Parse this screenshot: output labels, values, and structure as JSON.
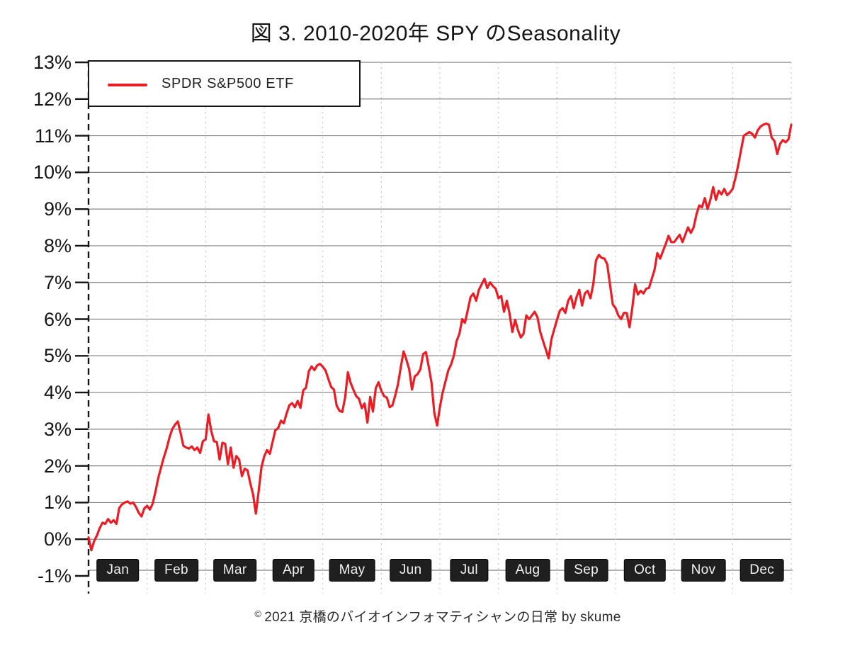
{
  "title": "図 3. 2010-2020年 SPY のSeasonality",
  "legend": {
    "label": "SPDR S&P500 ETF"
  },
  "footer": {
    "copyright": "©",
    "text": "2021 京橋のバイオインフォマティシャンの日常 by skume"
  },
  "colors": {
    "line": "#ed1c24",
    "grid": "#858585",
    "month_grid": "#cccccc",
    "axis": "#141414",
    "month_strip_line": "#9a9a9a",
    "month_box_bg": "#1f1f1f",
    "month_box_text": "#f2f2f2"
  },
  "chart_data": {
    "type": "line",
    "title": "図 3. 2010-2020年 SPY のSeasonality",
    "xlabel": "",
    "ylabel": "",
    "x_categories": [
      "Jan",
      "Feb",
      "Mar",
      "Apr",
      "May",
      "Jun",
      "Jul",
      "Aug",
      "Sep",
      "Oct",
      "Nov",
      "Dec"
    ],
    "ylim": [
      -1,
      13
    ],
    "ytick_step": 1,
    "ytick_format": "percent",
    "grid": true,
    "legend_position": "top-left",
    "series": [
      {
        "name": "SPDR S&P500 ETF",
        "color": "#ed1c24",
        "points_per_month": 21,
        "unit": "%",
        "values": [
          0.05,
          -0.3,
          -0.05,
          0.1,
          0.3,
          0.45,
          0.42,
          0.55,
          0.45,
          0.52,
          0.42,
          0.85,
          0.95,
          1.0,
          1.03,
          0.97,
          1.0,
          0.88,
          0.72,
          0.62,
          0.84,
          0.91,
          0.81,
          0.97,
          1.3,
          1.67,
          1.95,
          2.23,
          2.47,
          2.77,
          3.0,
          3.12,
          3.21,
          2.9,
          2.55,
          2.5,
          2.47,
          2.53,
          2.43,
          2.5,
          2.35,
          2.67,
          2.72,
          3.4,
          2.95,
          2.67,
          2.65,
          2.17,
          2.63,
          2.6,
          2.05,
          2.5,
          1.95,
          2.27,
          2.17,
          1.72,
          1.92,
          1.88,
          1.53,
          1.22,
          0.7,
          1.3,
          1.96,
          2.26,
          2.43,
          2.33,
          2.65,
          2.97,
          3.03,
          3.23,
          3.16,
          3.42,
          3.65,
          3.71,
          3.6,
          3.77,
          3.58,
          4.06,
          4.13,
          4.58,
          4.71,
          4.61,
          4.74,
          4.78,
          4.7,
          4.6,
          4.37,
          4.15,
          4.08,
          3.64,
          3.5,
          3.47,
          3.86,
          4.55,
          4.26,
          4.07,
          3.9,
          3.83,
          3.57,
          3.7,
          3.18,
          3.88,
          3.48,
          4.12,
          4.28,
          4.05,
          3.9,
          3.86,
          3.6,
          3.65,
          3.92,
          4.24,
          4.7,
          5.12,
          4.89,
          4.63,
          4.08,
          4.44,
          4.5,
          4.63,
          5.05,
          5.1,
          4.7,
          4.27,
          3.45,
          3.1,
          3.6,
          4.0,
          4.3,
          4.6,
          4.76,
          5.0,
          5.4,
          5.6,
          6.0,
          5.9,
          6.25,
          6.6,
          6.7,
          6.5,
          6.8,
          6.95,
          7.1,
          6.85,
          7.0,
          6.9,
          6.83,
          6.57,
          6.63,
          6.2,
          6.5,
          6.15,
          5.65,
          5.98,
          5.7,
          5.5,
          5.6,
          6.1,
          6.0,
          6.1,
          6.2,
          6.05,
          5.65,
          5.4,
          5.17,
          4.93,
          5.45,
          5.72,
          5.98,
          6.23,
          6.3,
          6.17,
          6.5,
          6.63,
          6.3,
          6.6,
          6.8,
          6.37,
          6.7,
          6.77,
          6.57,
          6.95,
          7.6,
          7.75,
          7.67,
          7.65,
          7.5,
          6.95,
          6.4,
          6.3,
          6.1,
          6.0,
          6.17,
          6.17,
          5.78,
          6.3,
          6.95,
          6.67,
          6.77,
          6.7,
          6.83,
          6.85,
          7.1,
          7.35,
          7.8,
          7.65,
          7.85,
          8.05,
          8.27,
          8.1,
          8.1,
          8.2,
          8.3,
          8.1,
          8.3,
          8.5,
          8.35,
          8.5,
          8.85,
          9.1,
          9.05,
          9.3,
          9.0,
          9.25,
          9.6,
          9.25,
          9.5,
          9.4,
          9.55,
          9.38,
          9.45,
          9.55,
          9.85,
          10.2,
          10.6,
          11.0,
          11.05,
          11.1,
          11.05,
          10.95,
          11.15,
          11.25,
          11.3,
          11.33,
          11.3,
          10.95,
          10.85,
          10.5,
          10.78,
          10.88,
          10.82,
          10.9,
          11.3
        ]
      }
    ]
  }
}
